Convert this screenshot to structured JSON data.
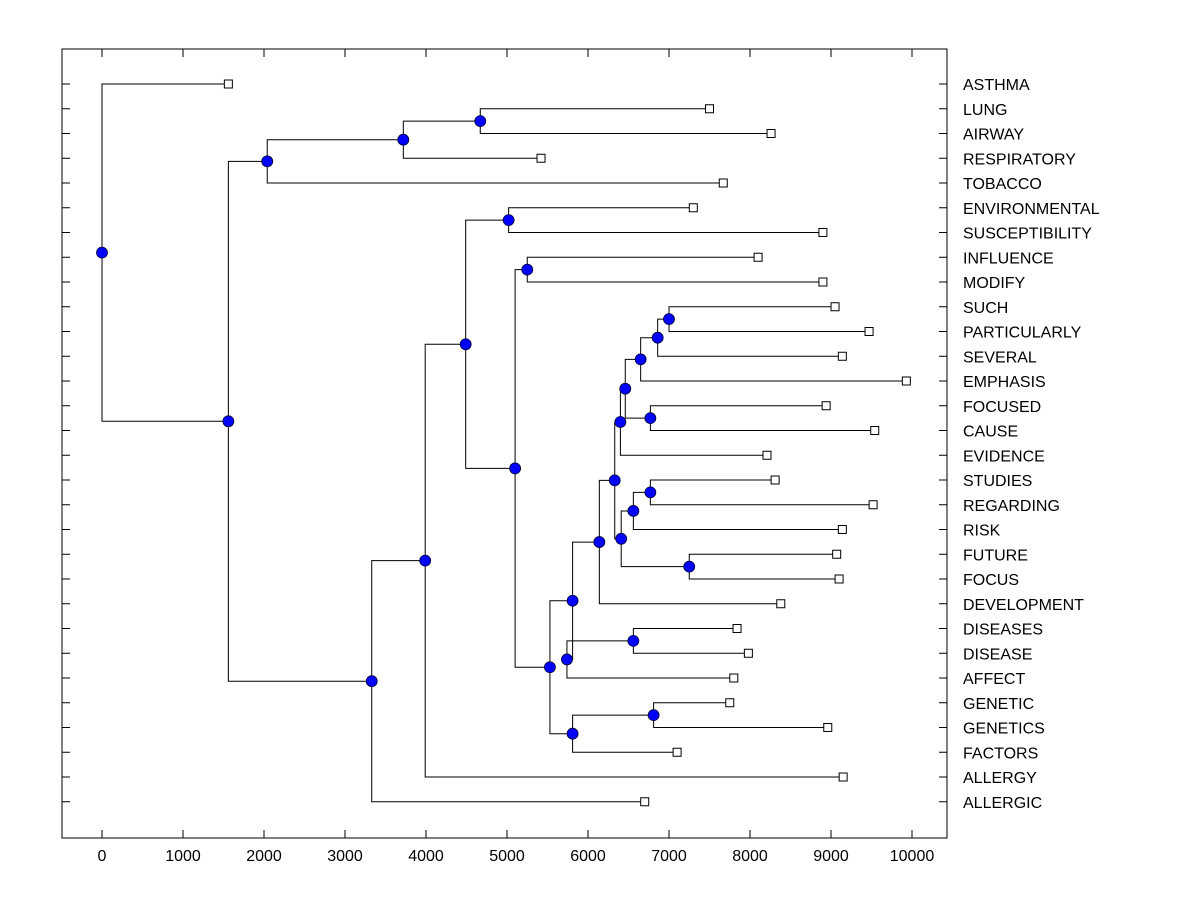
{
  "chart_data": {
    "type": "dendrogram",
    "title": "",
    "xlabel": "",
    "ylabel": "",
    "xlim": [
      -500,
      10400
    ],
    "xticks": [
      0,
      1000,
      2000,
      3000,
      4000,
      5000,
      6000,
      7000,
      8000,
      9000,
      10000
    ],
    "xtick_labels": [
      "0",
      "1000",
      "2000",
      "3000",
      "4000",
      "5000",
      "6000",
      "7000",
      "8000",
      "9000",
      "10000"
    ],
    "grid": false,
    "colors": {
      "node": "#0000ff",
      "line": "#000000",
      "leaf_fill": "#ffffff"
    },
    "leaves": [
      {
        "label": "ASTHMA",
        "value": 1560
      },
      {
        "label": "LUNG",
        "value": 7500
      },
      {
        "label": "AIRWAY",
        "value": 8260
      },
      {
        "label": "RESPIRATORY",
        "value": 5420
      },
      {
        "label": "TOBACCO",
        "value": 7670
      },
      {
        "label": "ENVIRONMENTAL",
        "value": 7300
      },
      {
        "label": "SUSCEPTIBILITY",
        "value": 8900
      },
      {
        "label": "INFLUENCE",
        "value": 8100
      },
      {
        "label": "MODIFY",
        "value": 8900
      },
      {
        "label": "SUCH",
        "value": 9050
      },
      {
        "label": "PARTICULARLY",
        "value": 9470
      },
      {
        "label": "SEVERAL",
        "value": 9140
      },
      {
        "label": "EMPHASIS",
        "value": 9930
      },
      {
        "label": "FOCUSED",
        "value": 8940
      },
      {
        "label": "CAUSE",
        "value": 9540
      },
      {
        "label": "EVIDENCE",
        "value": 8210
      },
      {
        "label": "STUDIES",
        "value": 8310
      },
      {
        "label": "REGARDING",
        "value": 9520
      },
      {
        "label": "RISK",
        "value": 9140
      },
      {
        "label": "FUTURE",
        "value": 9070
      },
      {
        "label": "FOCUS",
        "value": 9100
      },
      {
        "label": "DEVELOPMENT",
        "value": 8380
      },
      {
        "label": "DISEASES",
        "value": 7840
      },
      {
        "label": "DISEASE",
        "value": 7980
      },
      {
        "label": "AFFECT",
        "value": 7800
      },
      {
        "label": "GENETIC",
        "value": 7750
      },
      {
        "label": "GENETICS",
        "value": 8960
      },
      {
        "label": "FACTORS",
        "value": 7100
      },
      {
        "label": "ALLERGY",
        "value": 9150
      },
      {
        "label": "ALLERGIC",
        "value": 6700
      }
    ],
    "nodes": [
      {
        "id": "root",
        "value": 0,
        "children": [
          "L0",
          "A"
        ]
      },
      {
        "id": "A",
        "value": 1560,
        "children": [
          "B",
          "E"
        ]
      },
      {
        "id": "B",
        "value": 2040,
        "children": [
          "C",
          "L4"
        ]
      },
      {
        "id": "C",
        "value": 3720,
        "children": [
          "D",
          "L3"
        ]
      },
      {
        "id": "D",
        "value": 4670,
        "children": [
          "L1",
          "L2"
        ]
      },
      {
        "id": "E",
        "value": 3330,
        "children": [
          "F",
          "L29"
        ]
      },
      {
        "id": "F",
        "value": 3990,
        "children": [
          "G",
          "L28"
        ]
      },
      {
        "id": "G",
        "value": 4490,
        "children": [
          "H",
          "I"
        ]
      },
      {
        "id": "H",
        "value": 5020,
        "children": [
          "L5",
          "L6"
        ]
      },
      {
        "id": "I",
        "value": 5100,
        "children": [
          "J",
          "Z"
        ]
      },
      {
        "id": "J",
        "value": 5250,
        "children": [
          "L7",
          "L8"
        ]
      },
      {
        "id": "Z",
        "value": 5530,
        "children": [
          "W",
          "AB"
        ]
      },
      {
        "id": "W",
        "value": 5810,
        "children": [
          "V",
          "X"
        ]
      },
      {
        "id": "X",
        "value": 5740,
        "children": [
          "Y",
          "L24"
        ]
      },
      {
        "id": "Y",
        "value": 6560,
        "children": [
          "L22",
          "L23"
        ]
      },
      {
        "id": "V",
        "value": 6140,
        "children": [
          "Q",
          "L21"
        ]
      },
      {
        "id": "Q",
        "value": 6330,
        "children": [
          "P",
          "T"
        ]
      },
      {
        "id": "P",
        "value": 6400,
        "children": [
          "N",
          "L15"
        ]
      },
      {
        "id": "N",
        "value": 6460,
        "children": [
          "M",
          "O"
        ]
      },
      {
        "id": "M",
        "value": 6650,
        "children": [
          "L",
          "L12"
        ]
      },
      {
        "id": "L",
        "value": 6860,
        "children": [
          "K",
          "L11"
        ]
      },
      {
        "id": "K",
        "value": 7000,
        "children": [
          "L9",
          "L10"
        ]
      },
      {
        "id": "O",
        "value": 6770,
        "children": [
          "L13",
          "L14"
        ]
      },
      {
        "id": "T",
        "value": 6410,
        "children": [
          "S",
          "U"
        ]
      },
      {
        "id": "S",
        "value": 6560,
        "children": [
          "R",
          "L18"
        ]
      },
      {
        "id": "R",
        "value": 6770,
        "children": [
          "L16",
          "L17"
        ]
      },
      {
        "id": "U",
        "value": 7250,
        "children": [
          "L19",
          "L20"
        ]
      },
      {
        "id": "AB",
        "value": 5810,
        "children": [
          "AA",
          "L27"
        ]
      },
      {
        "id": "AA",
        "value": 6810,
        "children": [
          "L25",
          "L26"
        ]
      }
    ]
  }
}
